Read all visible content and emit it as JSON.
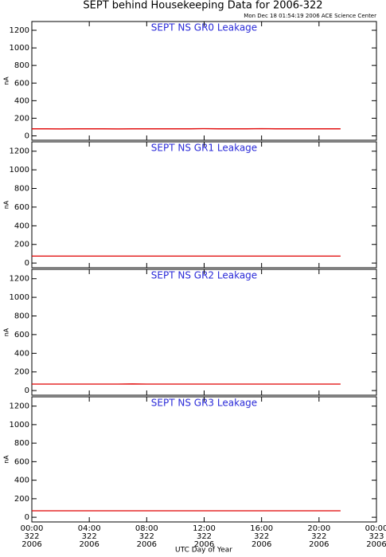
{
  "title": "SEPT behind Housekeeping Data for 2006-322",
  "subtitle": "Mon Dec 18 01:54:19 2006 ACE Science Center",
  "xlabel": "UTC Day of Year",
  "xlim": [
    0,
    24
  ],
  "xticks": [
    {
      "value": 0,
      "label": "00:00",
      "day": "322",
      "year": "2006"
    },
    {
      "value": 4,
      "label": "04:00",
      "day": "322",
      "year": "2006"
    },
    {
      "value": 8,
      "label": "08:00",
      "day": "322",
      "year": "2006"
    },
    {
      "value": 12,
      "label": "12:00",
      "day": "322",
      "year": "2006"
    },
    {
      "value": 16,
      "label": "16:00",
      "day": "322",
      "year": "2006"
    },
    {
      "value": 20,
      "label": "20:00",
      "day": "322",
      "year": "2006"
    },
    {
      "value": 24,
      "label": "00:00",
      "day": "323",
      "year": "2006"
    }
  ],
  "chart_data": [
    {
      "type": "line",
      "title": "SEPT NS GR0 Leakage",
      "ylabel": "nA",
      "ylim": [
        -50,
        1300
      ],
      "yticks": [
        0,
        200,
        400,
        600,
        800,
        1000,
        1200
      ],
      "x": [
        0,
        1,
        2,
        3,
        4,
        5,
        6,
        7,
        8,
        9,
        10,
        11,
        12,
        13,
        14,
        15,
        16,
        17,
        18,
        19,
        20,
        21,
        21.5
      ],
      "series": [
        {
          "color": "#e00000",
          "values": [
            80,
            80,
            79,
            80,
            80,
            80,
            79,
            80,
            80,
            80,
            80,
            80,
            81,
            80,
            80,
            80,
            81,
            80,
            80,
            80,
            80,
            80,
            80
          ]
        }
      ]
    },
    {
      "type": "line",
      "title": "SEPT NS GR1 Leakage",
      "ylabel": "nA",
      "ylim": [
        -50,
        1300
      ],
      "yticks": [
        0,
        200,
        400,
        600,
        800,
        1000,
        1200
      ],
      "x": [
        0,
        1,
        2,
        3,
        4,
        5,
        6,
        7,
        8,
        9,
        10,
        11,
        12,
        13,
        14,
        15,
        16,
        17,
        18,
        19,
        20,
        21,
        21.5
      ],
      "series": [
        {
          "color": "#e00000",
          "values": [
            75,
            75,
            75,
            75,
            75,
            75,
            75,
            75,
            75,
            75,
            75,
            75,
            75,
            75,
            75,
            75,
            75,
            75,
            75,
            75,
            75,
            75,
            75
          ]
        }
      ]
    },
    {
      "type": "line",
      "title": "SEPT NS GR2 Leakage",
      "ylabel": "nA",
      "ylim": [
        -50,
        1300
      ],
      "yticks": [
        0,
        200,
        400,
        600,
        800,
        1000,
        1200
      ],
      "x": [
        0,
        1,
        2,
        3,
        4,
        5,
        6,
        7,
        8,
        9,
        10,
        11,
        12,
        13,
        14,
        15,
        16,
        17,
        18,
        19,
        20,
        21,
        21.5
      ],
      "series": [
        {
          "color": "#e00000",
          "values": [
            70,
            70,
            70,
            70,
            70,
            70,
            70,
            71,
            70,
            70,
            70,
            70,
            70,
            70,
            70,
            70,
            70,
            70,
            70,
            70,
            70,
            70,
            70
          ]
        }
      ]
    },
    {
      "type": "line",
      "title": "SEPT NS GR3 Leakage",
      "ylabel": "nA",
      "ylim": [
        -50,
        1300
      ],
      "yticks": [
        0,
        200,
        400,
        600,
        800,
        1000,
        1200
      ],
      "x": [
        0,
        1,
        2,
        3,
        4,
        5,
        6,
        7,
        8,
        9,
        10,
        11,
        12,
        13,
        14,
        15,
        16,
        17,
        18,
        19,
        20,
        21,
        21.5
      ],
      "series": [
        {
          "color": "#e00000",
          "values": [
            70,
            70,
            70,
            70,
            70,
            70,
            70,
            70,
            70,
            70,
            70,
            70,
            70,
            70,
            70,
            70,
            70,
            70,
            70,
            70,
            70,
            70,
            70
          ]
        }
      ]
    }
  ]
}
